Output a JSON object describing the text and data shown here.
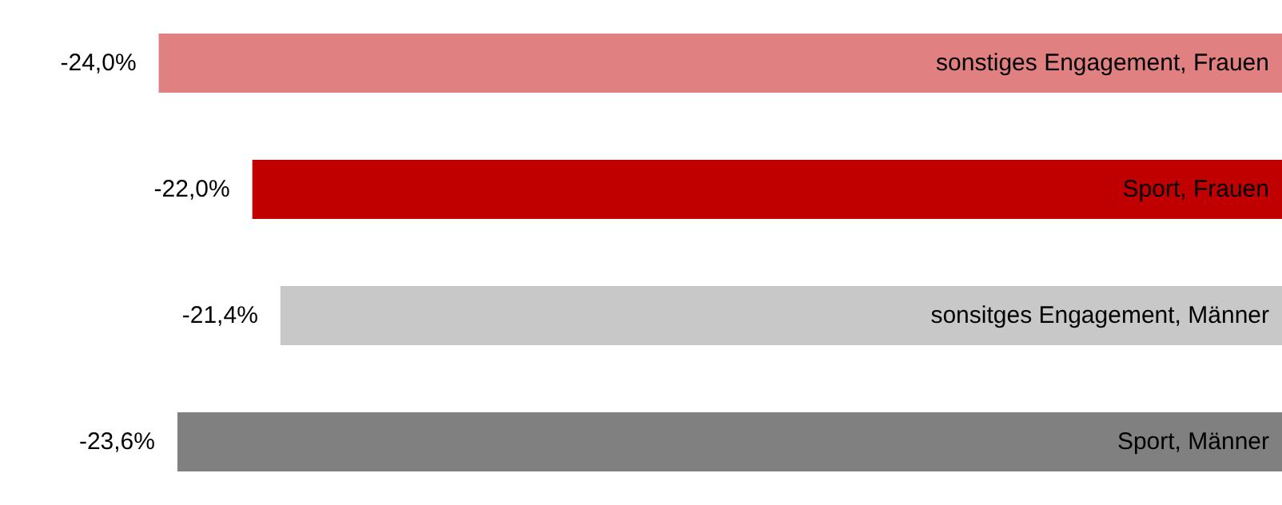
{
  "chart_data": {
    "type": "bar",
    "orientation": "horizontal",
    "categories": [
      "sonstiges Engagement, Frauen",
      "Sport, Frauen",
      "sonsitges Engagement, Männer",
      "Sport, Männer"
    ],
    "values": [
      -24.0,
      -22.0,
      -21.4,
      -23.6
    ],
    "value_labels": [
      "-24,0%",
      "-22,0%",
      "-21,4%",
      "-23,6%"
    ],
    "colors": [
      "#e08080",
      "#c00000",
      "#c8c8c8",
      "#808080"
    ],
    "tick_labels": "y"
  }
}
